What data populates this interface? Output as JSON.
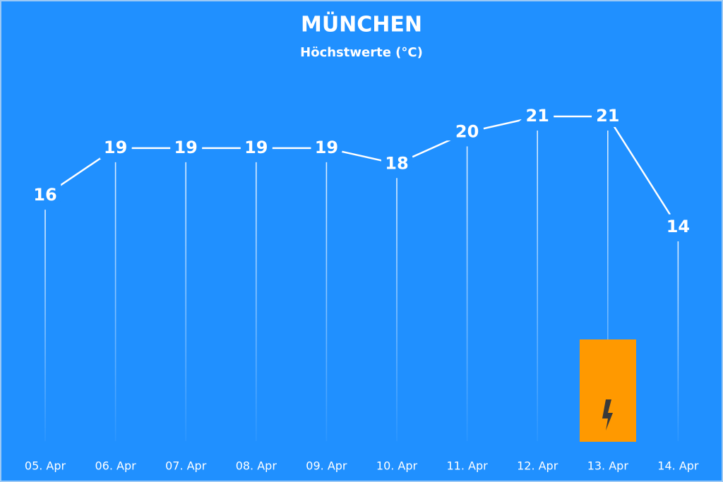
{
  "chart_data": {
    "type": "line",
    "title": "MÜNCHEN",
    "subtitle": "Höchstwerte (°C)",
    "categories": [
      "05. Apr",
      "06. Apr",
      "07. Apr",
      "08. Apr",
      "09. Apr",
      "10. Apr",
      "11. Apr",
      "12. Apr",
      "13. Apr",
      "14. Apr"
    ],
    "values": [
      16,
      19,
      19,
      19,
      19,
      18,
      20,
      21,
      21,
      14
    ],
    "color": "#ffffff"
  }
}
